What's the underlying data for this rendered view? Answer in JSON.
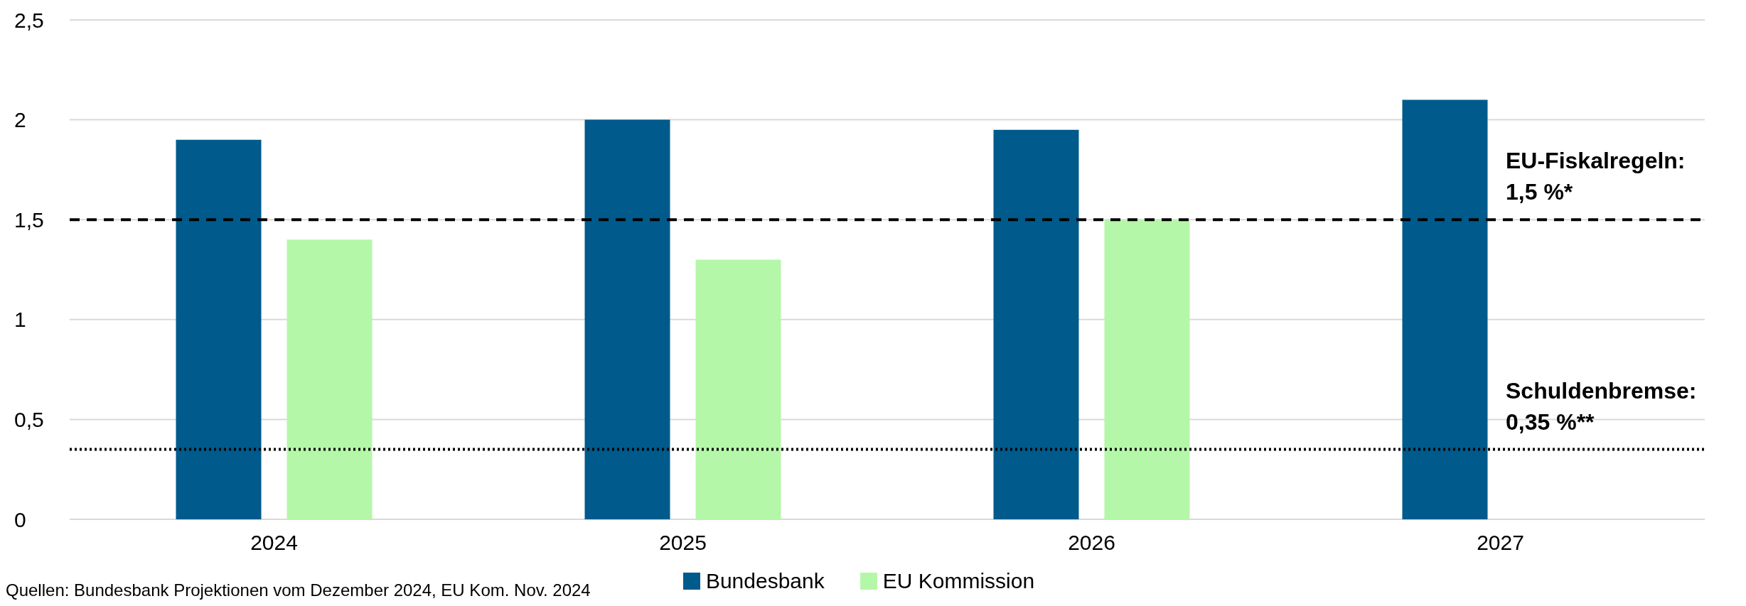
{
  "chart_data": {
    "type": "bar",
    "categories": [
      "2024",
      "2025",
      "2026",
      "2027"
    ],
    "series": [
      {
        "name": "Bundesbank",
        "color": "#005a8c",
        "values": [
          1.9,
          2.0,
          1.95,
          2.1
        ]
      },
      {
        "name": "EU Kommission",
        "color": "#b5f7a8",
        "values": [
          1.4,
          1.3,
          1.5,
          null
        ]
      }
    ],
    "ylim": [
      0,
      2.5
    ],
    "yticks": [
      {
        "value": 0,
        "label": "0"
      },
      {
        "value": 0.5,
        "label": "0,5"
      },
      {
        "value": 1,
        "label": "1"
      },
      {
        "value": 1.5,
        "label": "1,5"
      },
      {
        "value": 2,
        "label": "2"
      },
      {
        "value": 2.5,
        "label": "2,5"
      }
    ],
    "grid": "y",
    "legend": "bottom",
    "ref_lines": [
      {
        "axis": "y",
        "value": 1.5,
        "label": "EU-Fiskalregeln:\n1,5 %*",
        "color": "#000000",
        "line_style": "dashed"
      },
      {
        "axis": "y",
        "value": 0.35,
        "label": "Schuldenbremse:\n0,35 %**",
        "color": "#000000",
        "line_style": "dotted"
      }
    ],
    "annotations": [
      "Quellen: Bundesbank Projektionen vom Dezember 2024, EU Kom. Nov. 2024"
    ]
  }
}
